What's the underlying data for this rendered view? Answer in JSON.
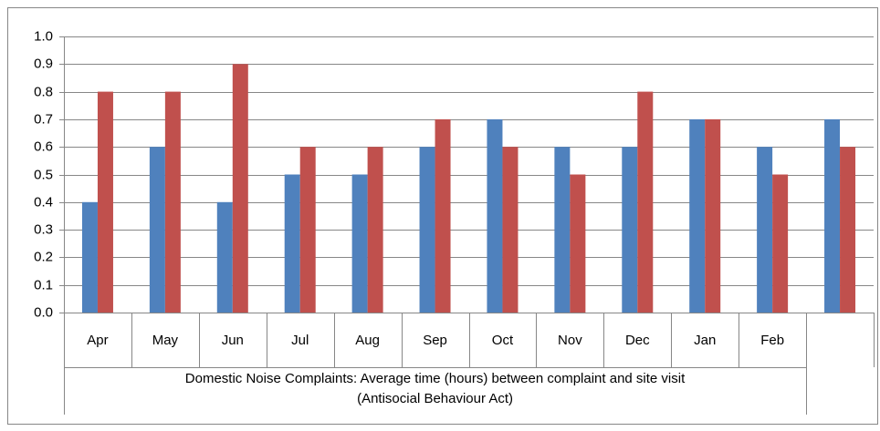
{
  "chart_data": {
    "type": "bar",
    "categories": [
      "Apr",
      "May",
      "Jun",
      "Jul",
      "Aug",
      "Sep",
      "Oct",
      "Nov",
      "Dec",
      "Jan",
      "Feb",
      null
    ],
    "x_group_label": [
      "Domestic Noise Complaints: Average time (hours) between complaint and site visit",
      "(Antisocial Behaviour Act)"
    ],
    "series": [
      {
        "color": "#4f81bd",
        "values": [
          0.4,
          0.6,
          0.4,
          0.5,
          0.5,
          0.6,
          0.7,
          0.6,
          0.6,
          0.7,
          0.6,
          0.7
        ]
      },
      {
        "color": "#c0504d",
        "values": [
          0.8,
          0.8,
          0.9,
          0.6,
          0.6,
          0.7,
          0.6,
          0.5,
          0.8,
          0.7,
          0.5,
          0.6
        ]
      }
    ],
    "ylim": [
      0,
      1
    ],
    "yticks": [
      {
        "value": 0,
        "label": "0.0"
      },
      0.1,
      0.2,
      0.3,
      0.4,
      0.5,
      0.6,
      0.7,
      0.8,
      0.9,
      {
        "value": 1,
        "label": "1.0"
      }
    ],
    "grid": true
  }
}
